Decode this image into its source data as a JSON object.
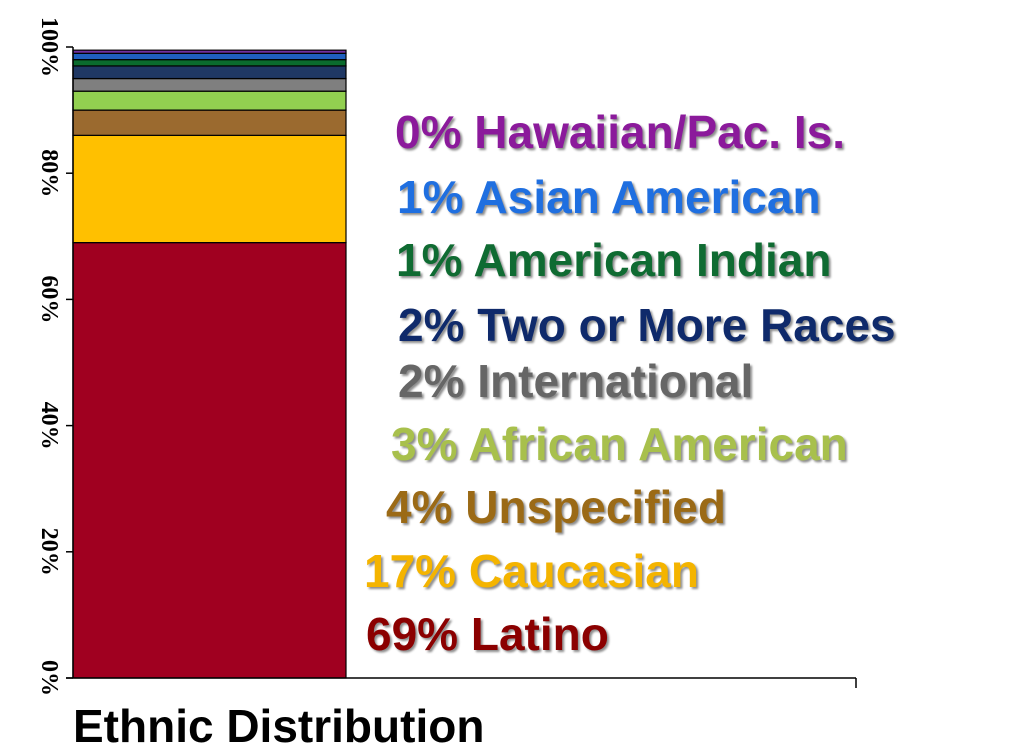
{
  "chart_data": {
    "type": "bar",
    "stacked": true,
    "xlabel": "Ethnic Distribution",
    "ylabel": "",
    "ylim": [
      0,
      100
    ],
    "yticks": [
      "0%",
      "20%",
      "40%",
      "60%",
      "80%",
      "100%"
    ],
    "grid": false,
    "legend_placement": "right",
    "categories": [
      ""
    ],
    "series": [
      {
        "name": "Latino",
        "values": [
          69
        ],
        "label": "69% Latino",
        "color": "#a00020",
        "text_color": "#8b0000"
      },
      {
        "name": "Caucasian",
        "values": [
          17
        ],
        "label": "17% Caucasian",
        "color": "#ffc000",
        "text_color": "#f4b400"
      },
      {
        "name": "Unspecified",
        "values": [
          4
        ],
        "label": "4% Unspecified",
        "color": "#9b6a2f",
        "text_color": "#9b6a16"
      },
      {
        "name": "African American",
        "values": [
          3
        ],
        "label": "3% African American",
        "color": "#92d050",
        "text_color": "#a8c04c"
      },
      {
        "name": "International",
        "values": [
          2
        ],
        "label": "2% International",
        "color": "#7f7f7f",
        "text_color": "#666666"
      },
      {
        "name": "Two or More Races",
        "values": [
          2
        ],
        "label": "2% Two or More Races",
        "color": "#1f3864",
        "text_color": "#0f2a6b"
      },
      {
        "name": "American Indian",
        "values": [
          1
        ],
        "label": "1% American Indian",
        "color": "#0a6b2e",
        "text_color": "#0f6b32"
      },
      {
        "name": "Asian American",
        "values": [
          1
        ],
        "label": "1% Asian American",
        "color": "#1f5fbf",
        "text_color": "#1f6fe0"
      },
      {
        "name": "Hawaiian/Pac. Is.",
        "values": [
          0.5
        ],
        "label": "0% Hawaiian/Pac. Is.",
        "color": "#7030a0",
        "text_color": "#8b1a9b"
      }
    ]
  }
}
